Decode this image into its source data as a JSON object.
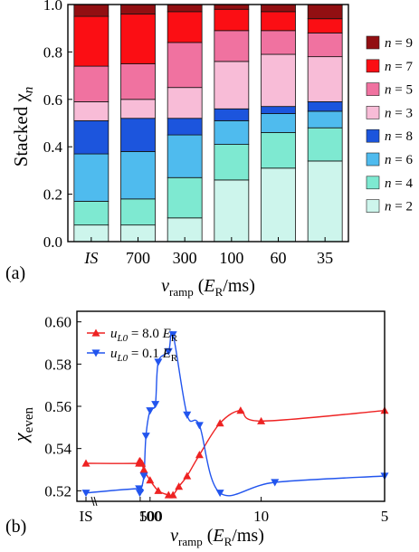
{
  "chart_data": [
    {
      "type": "bar",
      "stacked": true,
      "panel_label": "(a)",
      "categories": [
        "IS",
        "700",
        "300",
        "100",
        "60",
        "35"
      ],
      "ylabel": "Stacked χ",
      "ylabel_sub": "n",
      "xlabel_main": "v",
      "xlabel_sub": "ramp",
      "xlabel_tail_open": " (",
      "xlabel_E": "E",
      "xlabel_E_sub": "R",
      "xlabel_tail_close": "/ms)",
      "ylim": [
        0,
        1.0
      ],
      "yticks": [
        "0.0",
        "0.2",
        "0.4",
        "0.6",
        "0.8",
        "1.0"
      ],
      "series": [
        {
          "name": "n = 2",
          "color": "#cdf5ec",
          "values": [
            0.07,
            0.07,
            0.1,
            0.26,
            0.31,
            0.34
          ]
        },
        {
          "name": "n = 4",
          "color": "#7ee9d1",
          "values": [
            0.1,
            0.11,
            0.17,
            0.15,
            0.15,
            0.14
          ]
        },
        {
          "name": "n = 6",
          "color": "#4fbbee",
          "values": [
            0.2,
            0.2,
            0.18,
            0.1,
            0.08,
            0.07
          ]
        },
        {
          "name": "n = 8",
          "color": "#1c55dd",
          "values": [
            0.14,
            0.14,
            0.07,
            0.05,
            0.03,
            0.04
          ]
        },
        {
          "name": "n = 3",
          "color": "#f8bcd7",
          "values": [
            0.08,
            0.08,
            0.13,
            0.2,
            0.22,
            0.19
          ]
        },
        {
          "name": "n = 5",
          "color": "#f072a0",
          "values": [
            0.15,
            0.15,
            0.19,
            0.13,
            0.1,
            0.1
          ]
        },
        {
          "name": "n = 7",
          "color": "#fb0e14",
          "values": [
            0.21,
            0.21,
            0.13,
            0.09,
            0.08,
            0.06
          ]
        },
        {
          "name": "n = 9",
          "color": "#920f12",
          "values": [
            0.05,
            0.04,
            0.03,
            0.02,
            0.03,
            0.06
          ]
        }
      ],
      "legend_order": [
        "n = 9",
        "n = 7",
        "n = 5",
        "n = 3",
        "n = 8",
        "n = 6",
        "n = 4",
        "n = 2"
      ],
      "legend_position": "right"
    },
    {
      "type": "scatter",
      "panel_label": "(b)",
      "ylabel": "χ",
      "ylabel_sub": "even",
      "xlabel_main": "v",
      "xlabel_sub": "ramp",
      "xlabel_tail_open": " (",
      "xlabel_E": "E",
      "xlabel_E_sub": "R",
      "xlabel_tail_close": "/ms)",
      "x_scale": "reciprocal",
      "x_direction": "descending",
      "xlim": [
        1200,
        5
      ],
      "xticks": [
        "IS",
        "500",
        "100",
        "10",
        "5"
      ],
      "ylim": [
        0.515,
        0.605
      ],
      "yticks": [
        "0.52",
        "0.54",
        "0.56",
        "0.58",
        "0.60"
      ],
      "legend_position": "top-left",
      "series": [
        {
          "name": "u = 8.0 E",
          "label_u": "u",
          "label_u_sub": "L0",
          "label_mid": " = 8.0 ",
          "label_E": "E",
          "label_E_sub": "R",
          "marker": "triangle-up",
          "color": "#ee2222",
          "x": [
            "IS",
            900,
            700,
            500,
            300,
            200,
            100,
            60,
            40,
            35,
            30,
            25,
            20,
            15,
            12,
            10,
            5
          ],
          "y": [
            0.533,
            0.533,
            0.534,
            0.534,
            0.533,
            0.53,
            0.525,
            0.52,
            0.518,
            0.518,
            0.522,
            0.527,
            0.537,
            0.552,
            0.558,
            0.553,
            0.558
          ]
        },
        {
          "name": "u = 0.1 E",
          "label_u": "u",
          "label_u_sub": "L0",
          "label_mid": " = 0.1 ",
          "label_E": "E",
          "label_E_sub": "R",
          "marker": "triangle-down",
          "color": "#2255ee",
          "x": [
            "IS",
            900,
            600,
            200,
            150,
            100,
            70,
            60,
            40,
            35,
            25,
            20,
            15,
            9,
            5
          ],
          "y": [
            0.519,
            0.521,
            0.519,
            0.527,
            0.546,
            0.558,
            0.561,
            0.581,
            0.586,
            0.594,
            0.556,
            0.551,
            0.519,
            0.524,
            0.527
          ]
        }
      ]
    }
  ]
}
